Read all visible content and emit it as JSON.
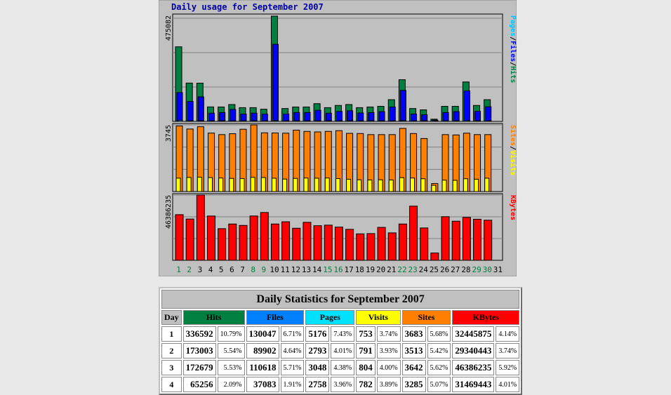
{
  "chart_data": {
    "type": "bar",
    "title": "Daily usage for September 2007",
    "days": [
      "1",
      "2",
      "3",
      "4",
      "5",
      "6",
      "7",
      "8",
      "9",
      "10",
      "11",
      "12",
      "13",
      "14",
      "15",
      "16",
      "17",
      "18",
      "19",
      "20",
      "21",
      "22",
      "23",
      "24",
      "25",
      "26",
      "27",
      "28",
      "29",
      "30",
      "31"
    ],
    "weekend_days": [
      "1",
      "2",
      "8",
      "9",
      "15",
      "16",
      "22",
      "23",
      "29",
      "30"
    ],
    "panels": [
      {
        "name": "hits-files-pages",
        "ymax": 475082,
        "ymax_label": "475082",
        "legend": [
          "Pages",
          "/",
          "Files",
          "/",
          "Hits"
        ],
        "legend_colors": [
          "#00c0ff",
          "#000000",
          "#0000ff",
          "#000000",
          "#008040"
        ],
        "series": [
          {
            "name": "Hits",
            "color": "#008040",
            "values": [
              336592,
              173003,
              172679,
              65256,
              65000,
              76000,
              62000,
              62000,
              55000,
              475082,
              58000,
              65000,
              65000,
              80000,
              62000,
              72000,
              76000,
              62000,
              65000,
              68000,
              98000,
              188000,
              58000,
              52000,
              10000,
              68000,
              68000,
              178000,
              72000,
              98000,
              0
            ]
          },
          {
            "name": "Files",
            "color": "#0000ff",
            "values": [
              130047,
              89902,
              110618,
              37083,
              40000,
              54000,
              33000,
              37000,
              33000,
              348000,
              33000,
              40000,
              40000,
              50000,
              37000,
              45000,
              48000,
              38000,
              40000,
              44000,
              65000,
              140000,
              33000,
              30000,
              6000,
              40000,
              44000,
              138000,
              46000,
              66000,
              0
            ]
          },
          {
            "name": "Pages",
            "color": "#00c0ff",
            "values": [
              5176,
              2793,
              3048,
              2758,
              2500,
              2600,
              2300,
              2600,
              2400,
              3500,
              2300,
              2600,
              2600,
              2800,
              2400,
              2700,
              2800,
              2400,
              2500,
              2600,
              2900,
              3900,
              2400,
              2300,
              800,
              2600,
              2600,
              3800,
              2700,
              3000,
              0
            ]
          }
        ]
      },
      {
        "name": "sites-visits",
        "ymax": 3745,
        "ymax_label": "3745",
        "legend": [
          "Sites",
          "/",
          "Visits"
        ],
        "legend_colors": [
          "#ff8000",
          "#000000",
          "#ffff00"
        ],
        "series": [
          {
            "name": "Sites",
            "color": "#ff8000",
            "values": [
              3683,
              3513,
              3642,
              3285,
              3200,
              3250,
              3500,
              3745,
              3300,
              3290,
              3280,
              3450,
              3380,
              3350,
              3380,
              3420,
              3270,
              3260,
              3200,
              3200,
              3200,
              3550,
              3260,
              2980,
              450,
              3200,
              3180,
              3280,
              3200,
              3200,
              0
            ]
          },
          {
            "name": "Visits",
            "color": "#ffff00",
            "values": [
              753,
              791,
              804,
              782,
              760,
              740,
              730,
              800,
              790,
              750,
              700,
              740,
              760,
              750,
              760,
              730,
              690,
              660,
              650,
              660,
              650,
              780,
              760,
              720,
              350,
              640,
              630,
              720,
              690,
              750,
              0
            ]
          }
        ]
      },
      {
        "name": "kbytes",
        "ymax": 46386235,
        "ymax_label": "46386235",
        "legend": [
          "KBytes"
        ],
        "legend_colors": [
          "#ff0000"
        ],
        "series": [
          {
            "name": "KBytes",
            "color": "#ff0000",
            "values": [
              32445875,
              29340443,
              46386235,
              31469443,
              22500000,
              25800000,
              24800000,
              31500000,
              34000000,
              25800000,
              27400000,
              22800000,
              27000000,
              24600000,
              25000000,
              23600000,
              22000000,
              18800000,
              19000000,
              23400000,
              19500000,
              25800000,
              38500000,
              23000000,
              5200000,
              31000000,
              27800000,
              30500000,
              29200000,
              28500000,
              0
            ]
          }
        ]
      }
    ]
  },
  "stats": {
    "title": "Daily Statistics for September 2007",
    "headers": {
      "day": "Day",
      "hits": "Hits",
      "files": "Files",
      "pages": "Pages",
      "visits": "Visits",
      "sites": "Sites",
      "kbytes": "KBytes"
    },
    "rows": [
      {
        "day": "1",
        "hits": "336592",
        "hits_pct": "10.79%",
        "files": "130047",
        "files_pct": "6.71%",
        "pages": "5176",
        "pages_pct": "7.43%",
        "visits": "753",
        "visits_pct": "3.74%",
        "sites": "3683",
        "sites_pct": "5.68%",
        "kbytes": "32445875",
        "kbytes_pct": "4.14%"
      },
      {
        "day": "2",
        "hits": "173003",
        "hits_pct": "5.54%",
        "files": "89902",
        "files_pct": "4.64%",
        "pages": "2793",
        "pages_pct": "4.01%",
        "visits": "791",
        "visits_pct": "3.93%",
        "sites": "3513",
        "sites_pct": "5.42%",
        "kbytes": "29340443",
        "kbytes_pct": "3.74%"
      },
      {
        "day": "3",
        "hits": "172679",
        "hits_pct": "5.53%",
        "files": "110618",
        "files_pct": "5.71%",
        "pages": "3048",
        "pages_pct": "4.38%",
        "visits": "804",
        "visits_pct": "4.00%",
        "sites": "3642",
        "sites_pct": "5.62%",
        "kbytes": "46386235",
        "kbytes_pct": "5.92%"
      },
      {
        "day": "4",
        "hits": "65256",
        "hits_pct": "2.09%",
        "files": "37083",
        "files_pct": "1.91%",
        "pages": "2758",
        "pages_pct": "3.96%",
        "visits": "782",
        "visits_pct": "3.89%",
        "sites": "3285",
        "sites_pct": "5.07%",
        "kbytes": "31469443",
        "kbytes_pct": "4.01%"
      }
    ]
  }
}
